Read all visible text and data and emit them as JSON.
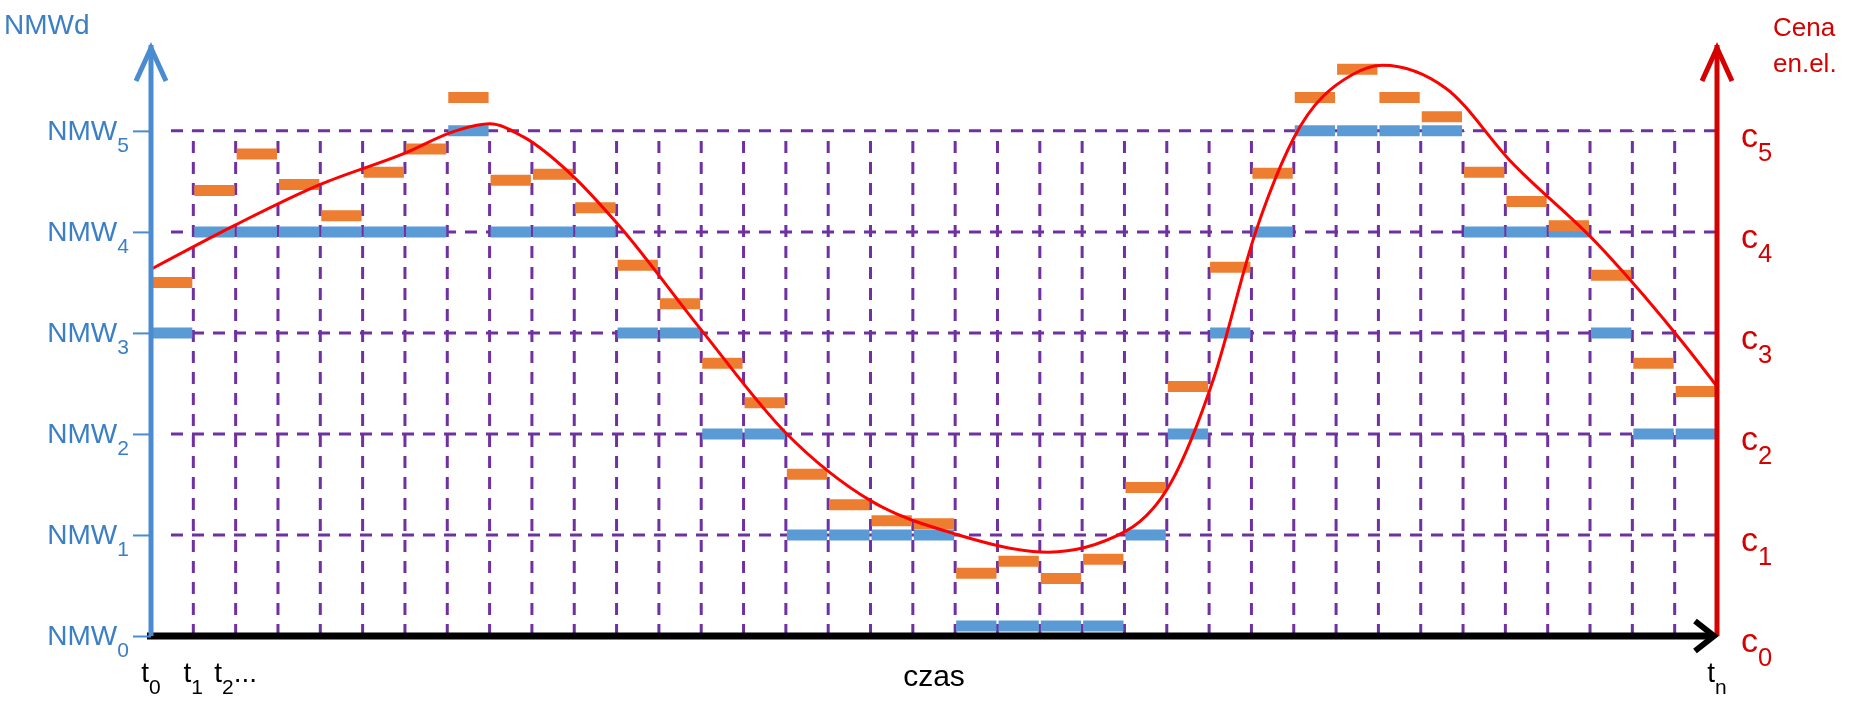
{
  "chart_data": {
    "type": "step",
    "xlabel": "czas",
    "ylabel": "NMWd",
    "y2label": "Cena en.el.",
    "x": [
      0,
      1,
      2,
      3,
      4,
      5,
      6,
      7,
      8,
      9,
      10,
      11,
      12,
      13,
      14,
      15,
      16,
      17,
      18,
      19,
      20,
      21,
      22,
      23,
      24,
      25,
      26,
      27,
      28,
      29,
      30,
      31,
      32,
      33,
      34,
      35,
      36,
      37
    ],
    "xlim": [
      0,
      37
    ],
    "xticks": [
      {
        "value": 0,
        "label": "t$_{0}$"
      },
      {
        "value": 1,
        "label": "t$_{1}$"
      },
      {
        "value": 2,
        "label": "t$_{2}$..."
      },
      {
        "value": 3,
        "label": null
      },
      {
        "value": 4,
        "label": null
      },
      {
        "value": 5,
        "label": null
      },
      {
        "value": 6,
        "label": null
      },
      {
        "value": 7,
        "label": null
      },
      {
        "value": 8,
        "label": null
      },
      {
        "value": 9,
        "label": null
      },
      {
        "value": 10,
        "label": null
      },
      {
        "value": 11,
        "label": null
      },
      {
        "value": 12,
        "label": null
      },
      {
        "value": 13,
        "label": null
      },
      {
        "value": 14,
        "label": null
      },
      {
        "value": 15,
        "label": null
      },
      {
        "value": 16,
        "label": null
      },
      {
        "value": 17,
        "label": null
      },
      {
        "value": 18,
        "label": null
      },
      {
        "value": 19,
        "label": null
      },
      {
        "value": 20,
        "label": null
      },
      {
        "value": 21,
        "label": null
      },
      {
        "value": 22,
        "label": null
      },
      {
        "value": 23,
        "label": null
      },
      {
        "value": 24,
        "label": null
      },
      {
        "value": 25,
        "label": null
      },
      {
        "value": 26,
        "label": null
      },
      {
        "value": 27,
        "label": null
      },
      {
        "value": 28,
        "label": null
      },
      {
        "value": 29,
        "label": null
      },
      {
        "value": 30,
        "label": null
      },
      {
        "value": 31,
        "label": null
      },
      {
        "value": 32,
        "label": null
      },
      {
        "value": 33,
        "label": null
      },
      {
        "value": 34,
        "label": null
      },
      {
        "value": 35,
        "label": null
      },
      {
        "value": 36,
        "label": null
      },
      {
        "value": 37,
        "label": "t$_{n}$"
      }
    ],
    "ylim": [
      0,
      5.85
    ],
    "yticks": [
      {
        "value": 0,
        "label": "NMW$_{0}$"
      },
      {
        "value": 1,
        "label": "NMW$_{1}$"
      },
      {
        "value": 2,
        "label": "NMW$_{2}$"
      },
      {
        "value": 3,
        "label": "NMW$_{3}$"
      },
      {
        "value": 4,
        "label": "NMW$_{4}$"
      },
      {
        "value": 5,
        "label": "NMW$_{5}$"
      }
    ],
    "y2lim": [
      0,
      5.85
    ],
    "y2ticks": [
      {
        "value": 0,
        "label": "c$_{0}$"
      },
      {
        "value": 1,
        "label": "c$_{1}$"
      },
      {
        "value": 2,
        "label": "c$_{2}$"
      },
      {
        "value": 3,
        "label": "c$_{3}$"
      },
      {
        "value": 4,
        "label": "c$_{4}$"
      },
      {
        "value": 5,
        "label": "c$_{5}$"
      }
    ],
    "grid": true,
    "series": [
      {
        "color": "#5b9bd5",
        "values": [
          3,
          4,
          4,
          4,
          4,
          4,
          4,
          5,
          4,
          4,
          4,
          3,
          3,
          2,
          2,
          1,
          1,
          1,
          1,
          0.1,
          0.1,
          0.1,
          0.1,
          1,
          2,
          3,
          4,
          5,
          5,
          5,
          5,
          4,
          4,
          4,
          3,
          2,
          2,
          2
        ]
      },
      {
        "color": "#ed7d31",
        "values": [
          3.5,
          4.41,
          4.77,
          4.47,
          4.16,
          4.59,
          4.82,
          5.33,
          4.51,
          4.57,
          4.24,
          3.67,
          3.29,
          2.7,
          2.31,
          1.6,
          1.3,
          1.14,
          1.11,
          0.62,
          0.74,
          0.57,
          0.76,
          1.47,
          2.47,
          3.65,
          4.58,
          5.33,
          5.61,
          5.33,
          5.14,
          4.59,
          4.3,
          4.06,
          3.57,
          2.7,
          2.42,
          2.42
        ]
      },
      {
        "type": "line",
        "axis": "y2",
        "color": "#ff0000",
        "x": [
          0,
          2,
          4,
          6,
          7.2,
          8,
          8.8,
          10,
          11,
          13,
          15,
          17,
          19,
          21.2,
          23,
          24.1,
          25.1,
          26.1,
          27,
          28.4,
          29.1,
          30.6,
          32.1,
          34.2,
          36.2,
          37
        ],
        "values": [
          3.63,
          4.07,
          4.47,
          4.78,
          5.0,
          5.07,
          4.94,
          4.54,
          4.09,
          3.03,
          2.01,
          1.34,
          1.01,
          0.83,
          1.03,
          1.52,
          2.54,
          4.0,
          4.93,
          5.56,
          5.65,
          5.42,
          4.71,
          3.87,
          2.9,
          2.47
        ]
      }
    ]
  }
}
